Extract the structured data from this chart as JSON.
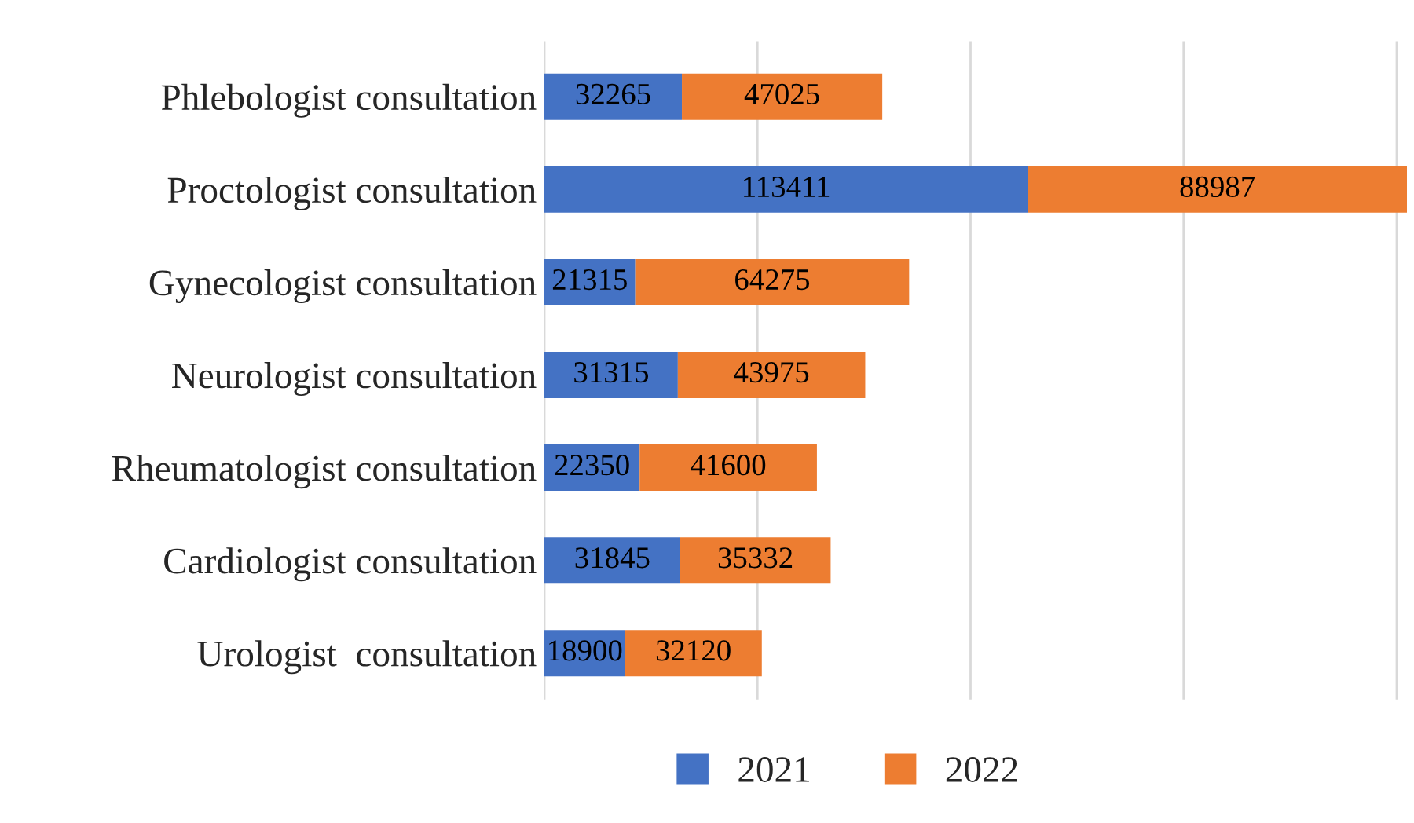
{
  "chart_data": {
    "type": "bar",
    "orientation": "horizontal",
    "stacked": true,
    "categories": [
      "Phlebologist consultation",
      "Proctologist consultation",
      "Gynecologist consultation",
      "Neurologist consultation",
      "Rheumatologist consultation",
      "Cardiologist consultation",
      "Urologist  consultation"
    ],
    "series": [
      {
        "name": "2021",
        "color": "#4472c4",
        "values": [
          32265,
          113411,
          21315,
          31315,
          22350,
          31845,
          18900
        ]
      },
      {
        "name": "2022",
        "color": "#ed7d31",
        "values": [
          47025,
          88987,
          64275,
          43975,
          41600,
          35332,
          32120
        ]
      }
    ],
    "data_labels": true,
    "grid": "x",
    "legend": "bottom"
  }
}
